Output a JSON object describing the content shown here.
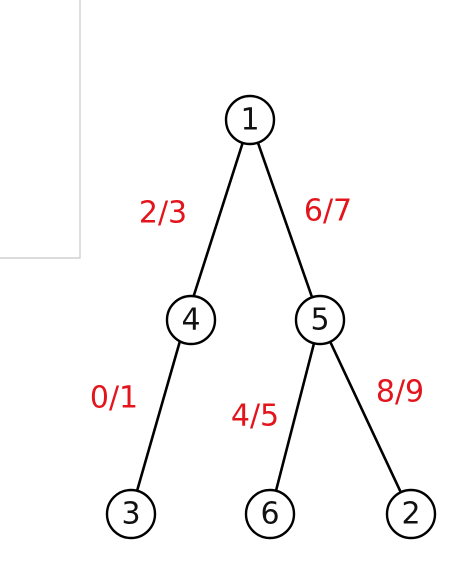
{
  "colors": {
    "edge": "#000000",
    "label": "#e3141b",
    "node_stroke": "#000000",
    "node_fill": "#ffffff",
    "frame": "#c8c8c8"
  },
  "nodes": [
    {
      "id": "n1",
      "label": "1"
    },
    {
      "id": "n4",
      "label": "4"
    },
    {
      "id": "n5",
      "label": "5"
    },
    {
      "id": "n3",
      "label": "3"
    },
    {
      "id": "n6",
      "label": "6"
    },
    {
      "id": "n2",
      "label": "2"
    }
  ],
  "edges": [
    {
      "from": "n1",
      "to": "n4",
      "label": "2/3"
    },
    {
      "from": "n1",
      "to": "n5",
      "label": "6/7"
    },
    {
      "from": "n4",
      "to": "n3",
      "label": "0/1"
    },
    {
      "from": "n5",
      "to": "n6",
      "label": "4/5"
    },
    {
      "from": "n5",
      "to": "n2",
      "label": "8/9"
    }
  ]
}
